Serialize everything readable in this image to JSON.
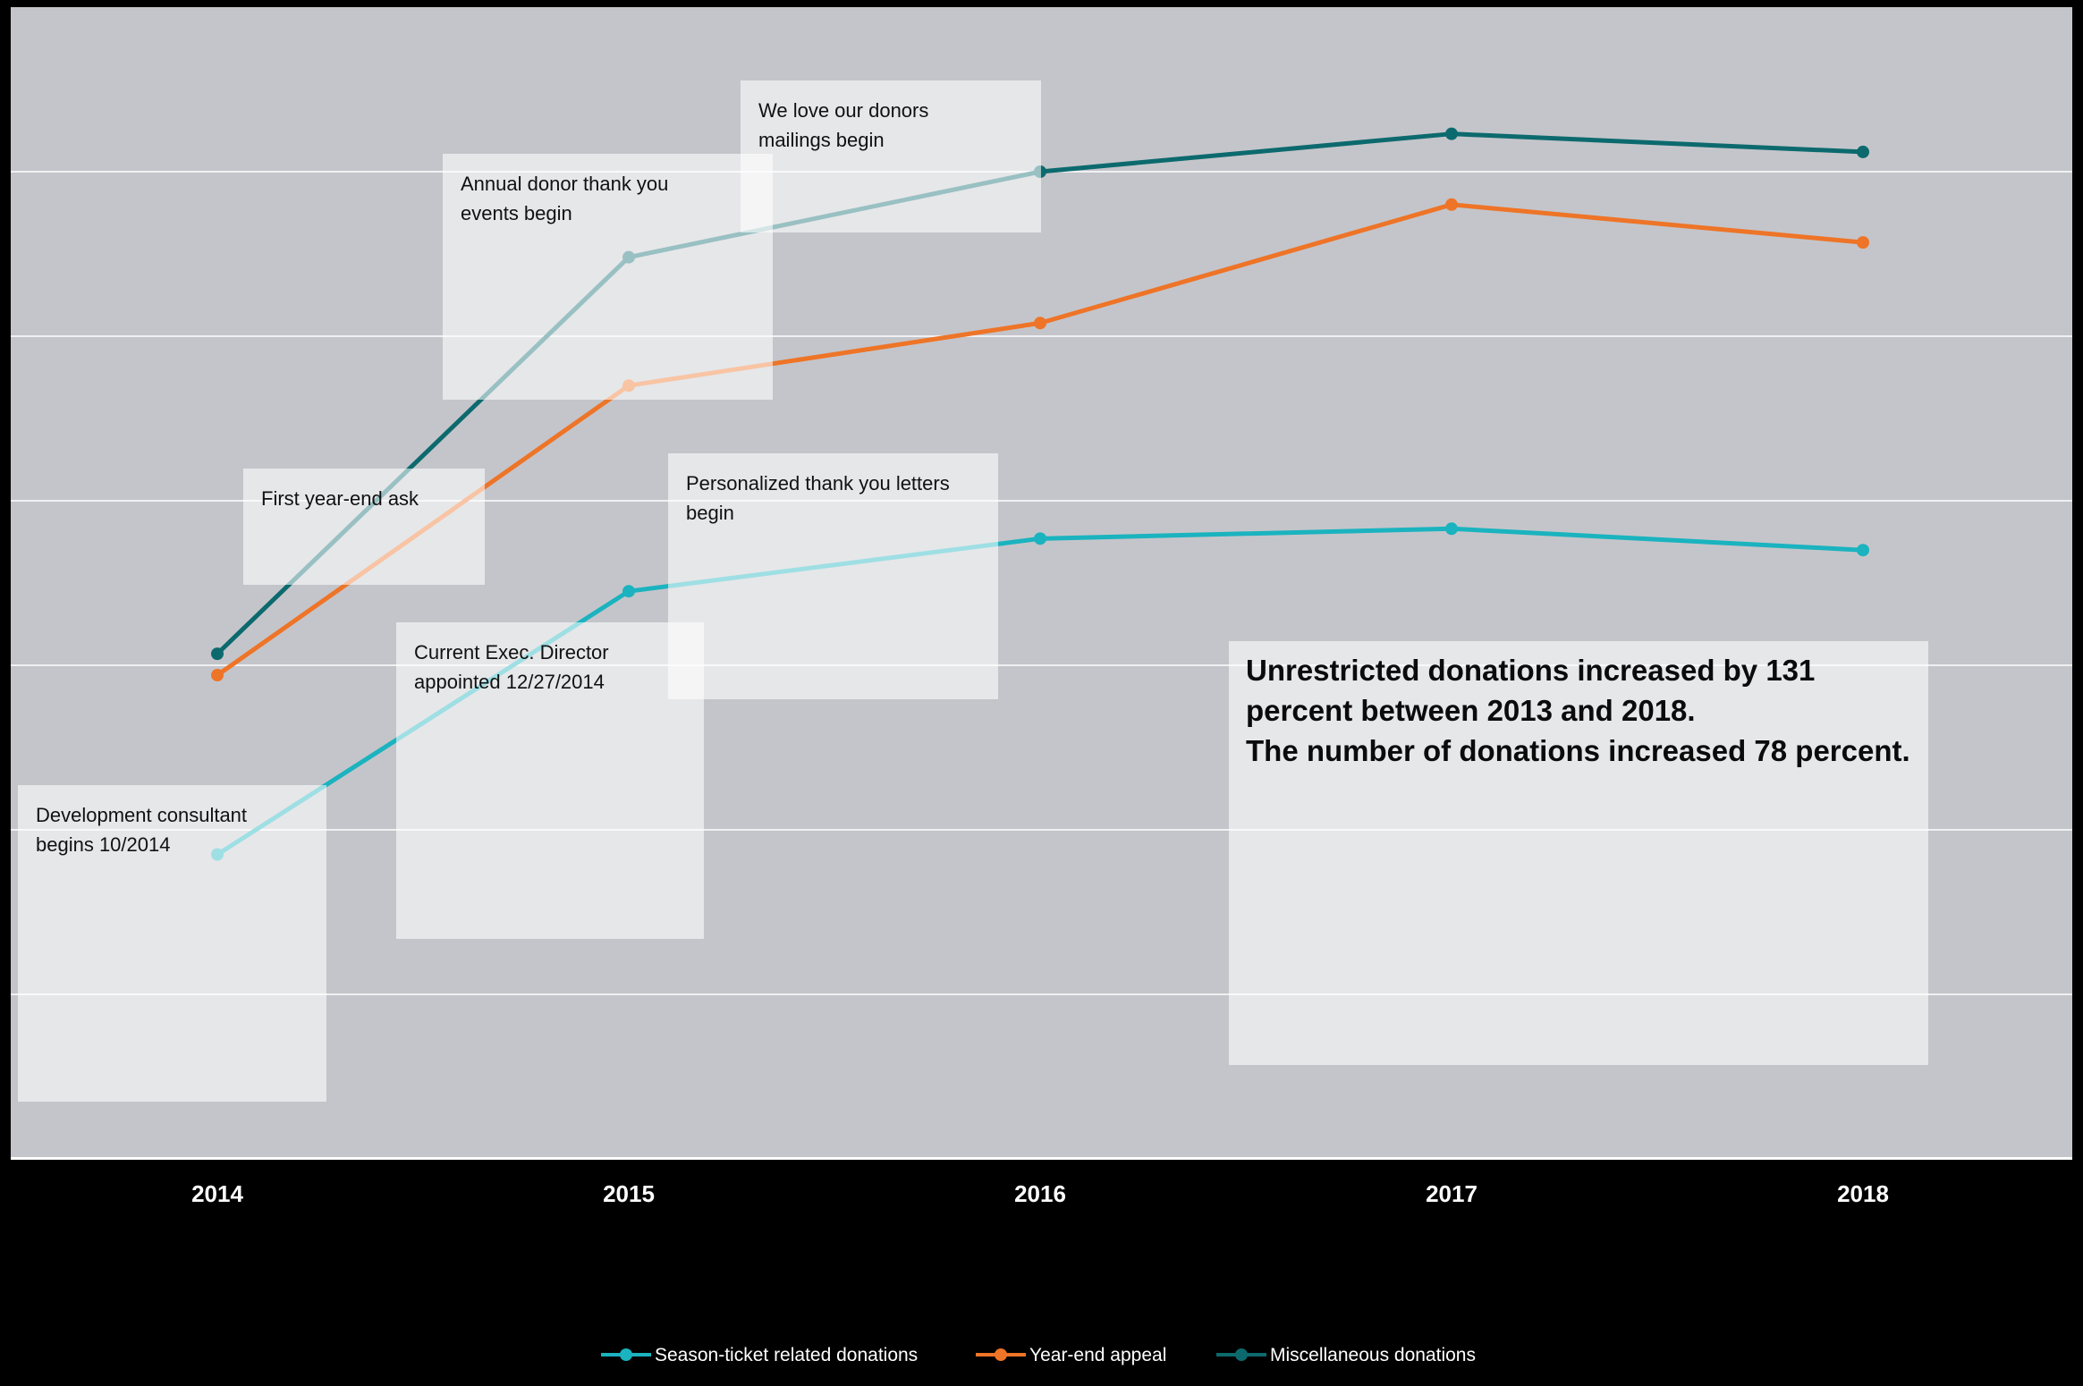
{
  "chart_data": {
    "type": "line",
    "categories": [
      "2014",
      "2015",
      "2016",
      "2017",
      "2018"
    ],
    "ylim": [
      0,
      7
    ],
    "grid": true,
    "legend_position": "bottom",
    "series": [
      {
        "name": "Season-ticket related donations",
        "color": "#1ab3bf",
        "values": [
          1.85,
          3.45,
          3.77,
          3.83,
          3.7
        ]
      },
      {
        "name": "Year-end appeal",
        "color": "#ee7427",
        "values": [
          2.94,
          4.7,
          5.08,
          5.8,
          5.57
        ]
      },
      {
        "name": "Miscellaneous donations",
        "color": "#0c6a6e",
        "values": [
          3.07,
          5.48,
          6.0,
          6.23,
          6.12
        ]
      }
    ],
    "annotations": [
      {
        "id": "dev-consultant",
        "lines": [
          "Development consultant",
          "begins 10/2014"
        ]
      },
      {
        "id": "first-ask",
        "lines": [
          "First year-end ask"
        ]
      },
      {
        "id": "exec-director",
        "lines": [
          "Current Exec. Director",
          "appointed 12/27/2014"
        ]
      },
      {
        "id": "thank-you-events",
        "lines": [
          "Annual donor thank you",
          "events begin"
        ]
      },
      {
        "id": "mailings",
        "lines": [
          "We love our donors",
          "mailings begin"
        ]
      },
      {
        "id": "thank-you-letters",
        "lines": [
          "Personalized thank you letters",
          "begin"
        ]
      }
    ],
    "callout": {
      "lines": [
        "Unrestricted donations increased by 131",
        "percent between 2013 and 2018.",
        "The number of donations increased 78 percent."
      ]
    }
  }
}
